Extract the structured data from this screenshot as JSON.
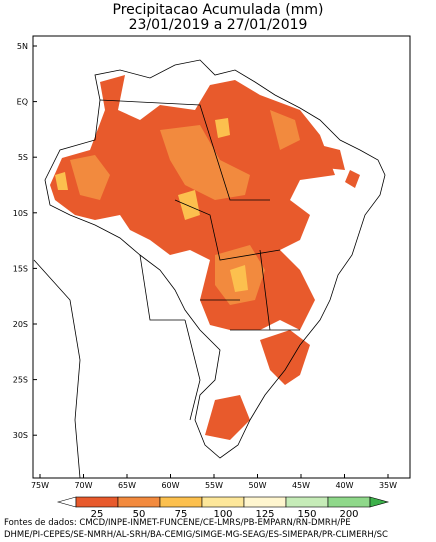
{
  "header": {
    "title": "Precipitacao Acumulada (mm)",
    "period": "23/01/2019 a 27/01/2019"
  },
  "map": {
    "lat_labels": [
      "5N",
      "EQ",
      "5S",
      "10S",
      "15S",
      "20S",
      "25S",
      "30S"
    ],
    "lon_labels": [
      "75W",
      "70W",
      "65W",
      "60W",
      "55W",
      "50W",
      "45W",
      "40W",
      "35W"
    ]
  },
  "legend": {
    "labels": [
      25,
      50,
      75,
      100,
      125,
      150,
      200
    ]
  },
  "footer": {
    "line1": "Fontes de dados: CMCD/INPE-INMET-FUNCENE/CE-LMRS/PB-EMPARN/RN-DMRH/PE",
    "line2": "DHME/PI-CEPES/SE-NMRH/AL-SRH/BA-CEMIG/SIMGE-MG-SEAG/ES-SIMEPAR/PR-CLIMERH/SC"
  }
}
